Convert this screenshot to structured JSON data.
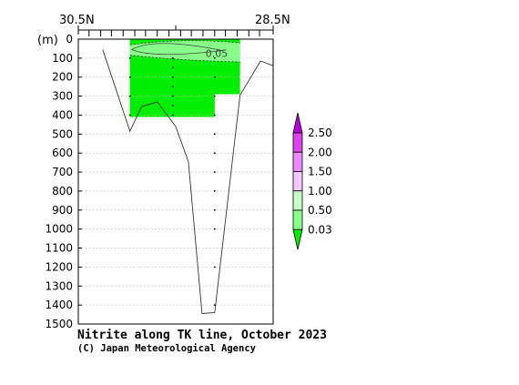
{
  "chart_data": {
    "type": "contour-section",
    "title": "Nitrite along TK line, October 2023",
    "credit": "(C) Japan Meteorological Agency",
    "x_axis": {
      "left_label": "30.5N",
      "right_label": "28.5N",
      "range": [
        30.5,
        28.5
      ],
      "station_latitudes": [
        30.39,
        30.27,
        30.16,
        30.04,
        29.92,
        29.81,
        29.69,
        29.57,
        29.45,
        29.34,
        29.22,
        29.1,
        28.99,
        28.87,
        28.75,
        28.64
      ],
      "station_tick_labels": [
        "",
        "",
        "",
        "",
        "",
        "",
        "",
        "",
        "",
        "",
        "",
        "",
        "",
        "",
        "",
        ""
      ]
    },
    "y_axis": {
      "unit_label": "(m)",
      "range": [
        0,
        1500
      ],
      "ticks": [
        0,
        100,
        200,
        300,
        400,
        500,
        600,
        700,
        800,
        900,
        1000,
        1100,
        1200,
        1300,
        1400,
        1500
      ],
      "tick_labels": [
        "0",
        "100",
        "200",
        "300",
        "400",
        "500",
        "600",
        "700",
        "800",
        "900",
        "1000",
        "1100",
        "1200",
        "1300",
        "1400",
        "1500"
      ],
      "gridlines": true
    },
    "bottom_topography": [
      {
        "lat": 30.25,
        "depth": 55
      },
      {
        "lat": 29.97,
        "depth": 485
      },
      {
        "lat": 29.85,
        "depth": 355
      },
      {
        "lat": 29.69,
        "depth": 330
      },
      {
        "lat": 29.5,
        "depth": 460
      },
      {
        "lat": 29.37,
        "depth": 645
      },
      {
        "lat": 29.23,
        "depth": 1445
      },
      {
        "lat": 29.1,
        "depth": 1440
      },
      {
        "lat": 28.84,
        "depth": 295
      },
      {
        "lat": 28.63,
        "depth": 115
      },
      {
        "lat": 28.5,
        "depth": 140
      }
    ],
    "shaded_region": {
      "color": "#00ee00",
      "lat_range": [
        29.97,
        28.84
      ],
      "depth_max_west": 410,
      "step_lat": 29.1,
      "depth_max_east": 290
    },
    "lighter_band": {
      "color": "#88ff88",
      "depth_top_west": 30,
      "depth_top_east": 20,
      "depth_bottom_west": 85,
      "depth_bottom_east": 120
    },
    "contour_labels": [
      {
        "text": "0.05",
        "lat": 29.1,
        "depth": 75
      }
    ],
    "sample_columns": [
      {
        "lat": 29.97,
        "depths": [
          100,
          200,
          300,
          400
        ]
      },
      {
        "lat": 29.53,
        "depths": [
          100,
          150,
          200,
          250,
          300,
          350,
          400
        ]
      },
      {
        "lat": 29.1,
        "depths": [
          100,
          200,
          300,
          400,
          500,
          600,
          700,
          800,
          900,
          1000,
          1200,
          1400
        ]
      }
    ],
    "legend": {
      "levels": [
        "2.50",
        "2.00",
        "1.50",
        "1.00",
        "0.50",
        "0.03"
      ],
      "colors": [
        "#bb00dd",
        "#dd44ee",
        "#ee88ff",
        "#f4c8ff",
        "#c8ffc8",
        "#88ff88",
        "#00ee00"
      ]
    }
  }
}
